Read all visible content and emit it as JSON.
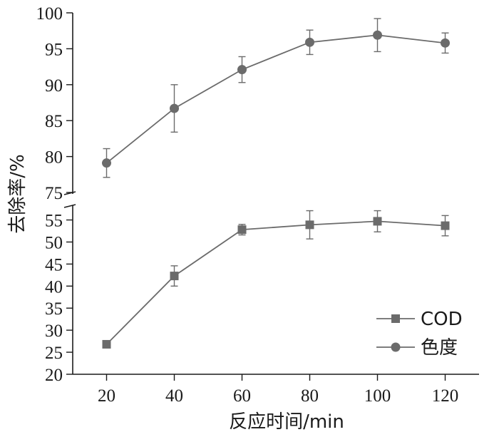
{
  "chart_data": {
    "type": "line",
    "xlabel": "反应时间/min",
    "ylabel": "去除率/%",
    "x": [
      20,
      40,
      60,
      80,
      100,
      120
    ],
    "xlim": [
      10,
      130
    ],
    "ylim_upper": [
      75,
      100
    ],
    "ylim_lower": [
      20,
      58
    ],
    "y_ticks_upper": [
      75,
      80,
      85,
      90,
      95,
      100
    ],
    "y_ticks_lower": [
      20,
      25,
      30,
      35,
      40,
      45,
      50,
      55
    ],
    "x_ticks": [
      20,
      40,
      60,
      80,
      100,
      120
    ],
    "axis_break": true,
    "grid": false,
    "legend_position": "bottom-right",
    "series": [
      {
        "name": "COD",
        "marker": "square",
        "panel": "lower",
        "values": [
          26.8,
          42.3,
          52.8,
          53.9,
          54.7,
          53.7
        ],
        "errors": [
          0,
          2.3,
          1.2,
          3.2,
          2.4,
          2.3
        ],
        "color": "#6b6b6b"
      },
      {
        "name": "色度",
        "marker": "circle",
        "panel": "upper",
        "values": [
          79.1,
          86.7,
          92.1,
          95.9,
          96.9,
          95.8
        ],
        "errors": [
          2.0,
          3.3,
          1.8,
          1.7,
          2.3,
          1.4
        ],
        "color": "#6b6b6b"
      }
    ]
  }
}
